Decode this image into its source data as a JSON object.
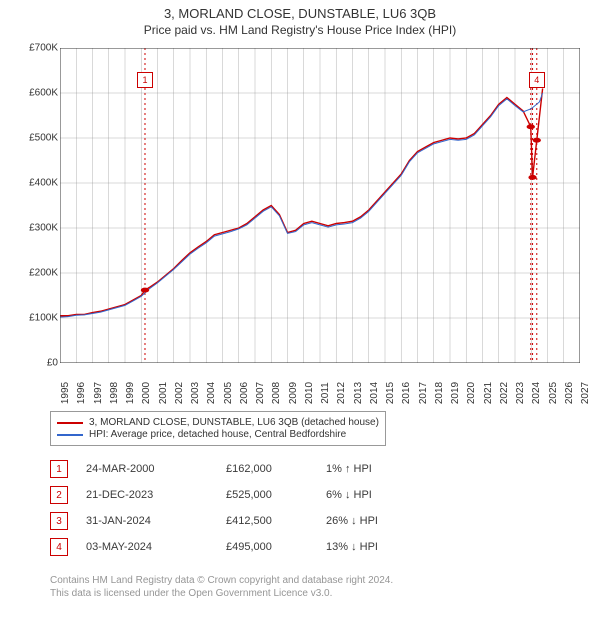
{
  "title": {
    "main": "3, MORLAND CLOSE, DUNSTABLE, LU6 3QB",
    "sub": "Price paid vs. HM Land Registry's House Price Index (HPI)"
  },
  "chart": {
    "type": "line",
    "background_color": "#ffffff",
    "grid_color": "#808080",
    "grid_width": 0.3,
    "axis_color": "#333333",
    "xlim": [
      1995,
      2027
    ],
    "ylim": [
      0,
      700000
    ],
    "ytick_step": 100000,
    "ytick_labels": [
      "£0",
      "£100K",
      "£200K",
      "£300K",
      "£400K",
      "£500K",
      "£600K",
      "£700K"
    ],
    "xtick_step": 1,
    "xticks": [
      1995,
      1996,
      1997,
      1998,
      1999,
      2000,
      2001,
      2002,
      2003,
      2004,
      2005,
      2006,
      2007,
      2008,
      2009,
      2010,
      2011,
      2012,
      2013,
      2014,
      2015,
      2016,
      2017,
      2018,
      2019,
      2020,
      2021,
      2022,
      2023,
      2024,
      2025,
      2026,
      2027
    ],
    "label_fontsize": 10,
    "series": [
      {
        "name": "property",
        "label": "3, MORLAND CLOSE, DUNSTABLE, LU6 3QB (detached house)",
        "color": "#cc0000",
        "width": 1.4,
        "data": [
          [
            1995.0,
            105000
          ],
          [
            1995.5,
            105000
          ],
          [
            1996.0,
            108000
          ],
          [
            1996.5,
            108000
          ],
          [
            1997.0,
            112000
          ],
          [
            1997.5,
            115000
          ],
          [
            1998.0,
            120000
          ],
          [
            1998.5,
            125000
          ],
          [
            1999.0,
            130000
          ],
          [
            1999.5,
            140000
          ],
          [
            2000.0,
            150000
          ],
          [
            2000.23,
            162000
          ],
          [
            2000.5,
            168000
          ],
          [
            2001.0,
            180000
          ],
          [
            2001.5,
            195000
          ],
          [
            2002.0,
            210000
          ],
          [
            2002.5,
            228000
          ],
          [
            2003.0,
            245000
          ],
          [
            2003.5,
            258000
          ],
          [
            2004.0,
            270000
          ],
          [
            2004.5,
            285000
          ],
          [
            2005.0,
            290000
          ],
          [
            2005.5,
            295000
          ],
          [
            2006.0,
            300000
          ],
          [
            2006.5,
            310000
          ],
          [
            2007.0,
            325000
          ],
          [
            2007.5,
            340000
          ],
          [
            2008.0,
            350000
          ],
          [
            2008.5,
            330000
          ],
          [
            2009.0,
            290000
          ],
          [
            2009.5,
            295000
          ],
          [
            2010.0,
            310000
          ],
          [
            2010.5,
            315000
          ],
          [
            2011.0,
            310000
          ],
          [
            2011.5,
            305000
          ],
          [
            2012.0,
            310000
          ],
          [
            2012.5,
            312000
          ],
          [
            2013.0,
            315000
          ],
          [
            2013.5,
            325000
          ],
          [
            2014.0,
            340000
          ],
          [
            2014.5,
            360000
          ],
          [
            2015.0,
            380000
          ],
          [
            2015.5,
            400000
          ],
          [
            2016.0,
            420000
          ],
          [
            2016.5,
            450000
          ],
          [
            2017.0,
            470000
          ],
          [
            2017.5,
            480000
          ],
          [
            2018.0,
            490000
          ],
          [
            2018.5,
            495000
          ],
          [
            2019.0,
            500000
          ],
          [
            2019.5,
            498000
          ],
          [
            2020.0,
            500000
          ],
          [
            2020.5,
            510000
          ],
          [
            2021.0,
            530000
          ],
          [
            2021.5,
            550000
          ],
          [
            2022.0,
            575000
          ],
          [
            2022.5,
            590000
          ],
          [
            2023.0,
            575000
          ],
          [
            2023.5,
            560000
          ],
          [
            2023.97,
            525000
          ],
          [
            2024.08,
            412500
          ],
          [
            2024.34,
            495000
          ],
          [
            2024.7,
            610000
          ]
        ]
      },
      {
        "name": "hpi",
        "label": "HPI: Average price, detached house, Central Bedfordshire",
        "color": "#3366cc",
        "width": 1.0,
        "data": [
          [
            1995.0,
            102000
          ],
          [
            1995.5,
            103000
          ],
          [
            1996.0,
            106000
          ],
          [
            1996.5,
            107000
          ],
          [
            1997.0,
            110000
          ],
          [
            1997.5,
            113000
          ],
          [
            1998.0,
            118000
          ],
          [
            1998.5,
            123000
          ],
          [
            1999.0,
            128000
          ],
          [
            1999.5,
            138000
          ],
          [
            2000.0,
            148000
          ],
          [
            2000.5,
            165000
          ],
          [
            2001.0,
            178000
          ],
          [
            2001.5,
            193000
          ],
          [
            2002.0,
            208000
          ],
          [
            2002.5,
            225000
          ],
          [
            2003.0,
            242000
          ],
          [
            2003.5,
            255000
          ],
          [
            2004.0,
            267000
          ],
          [
            2004.5,
            282000
          ],
          [
            2005.0,
            287000
          ],
          [
            2005.5,
            292000
          ],
          [
            2006.0,
            298000
          ],
          [
            2006.5,
            307000
          ],
          [
            2007.0,
            322000
          ],
          [
            2007.5,
            337000
          ],
          [
            2008.0,
            347000
          ],
          [
            2008.5,
            327000
          ],
          [
            2009.0,
            288000
          ],
          [
            2009.5,
            292000
          ],
          [
            2010.0,
            307000
          ],
          [
            2010.5,
            312000
          ],
          [
            2011.0,
            307000
          ],
          [
            2011.5,
            302000
          ],
          [
            2012.0,
            307000
          ],
          [
            2012.5,
            309000
          ],
          [
            2013.0,
            312000
          ],
          [
            2013.5,
            322000
          ],
          [
            2014.0,
            337000
          ],
          [
            2014.5,
            357000
          ],
          [
            2015.0,
            377000
          ],
          [
            2015.5,
            397000
          ],
          [
            2016.0,
            417000
          ],
          [
            2016.5,
            447000
          ],
          [
            2017.0,
            467000
          ],
          [
            2017.5,
            477000
          ],
          [
            2018.0,
            487000
          ],
          [
            2018.5,
            492000
          ],
          [
            2019.0,
            497000
          ],
          [
            2019.5,
            495000
          ],
          [
            2020.0,
            497000
          ],
          [
            2020.5,
            507000
          ],
          [
            2021.0,
            527000
          ],
          [
            2021.5,
            547000
          ],
          [
            2022.0,
            572000
          ],
          [
            2022.5,
            587000
          ],
          [
            2023.0,
            572000
          ],
          [
            2023.5,
            558000
          ],
          [
            2024.0,
            565000
          ],
          [
            2024.5,
            580000
          ],
          [
            2024.7,
            600000
          ]
        ]
      }
    ],
    "markers": [
      {
        "n": "1",
        "year": 2000.23,
        "value": 162000,
        "box_y": 630000
      },
      {
        "n": "4",
        "year": 2024.34,
        "value": 495000,
        "box_y": 630000
      }
    ],
    "transaction_dots": [
      {
        "year": 2000.23,
        "value": 162000
      },
      {
        "year": 2023.97,
        "value": 525000
      },
      {
        "year": 2024.08,
        "value": 412500
      },
      {
        "year": 2024.34,
        "value": 495000
      }
    ],
    "vlines": [
      {
        "year": 2000.23,
        "color": "#cc0000",
        "dash": "2,3"
      },
      {
        "year": 2023.97,
        "color": "#cc0000",
        "dash": "2,3"
      },
      {
        "year": 2024.08,
        "color": "#cc0000",
        "dash": "2,3"
      },
      {
        "year": 2024.34,
        "color": "#cc0000",
        "dash": "2,3"
      }
    ]
  },
  "legend": {
    "border_color": "#999999",
    "items": [
      {
        "color": "#cc0000",
        "label": "3, MORLAND CLOSE, DUNSTABLE, LU6 3QB (detached house)"
      },
      {
        "color": "#3366cc",
        "label": "HPI: Average price, detached house, Central Bedfordshire"
      }
    ]
  },
  "transactions": [
    {
      "n": "1",
      "date": "24-MAR-2000",
      "price": "£162,000",
      "pct": "1%",
      "dir": "↑",
      "suffix": "HPI"
    },
    {
      "n": "2",
      "date": "21-DEC-2023",
      "price": "£525,000",
      "pct": "6%",
      "dir": "↓",
      "suffix": "HPI"
    },
    {
      "n": "3",
      "date": "31-JAN-2024",
      "price": "£412,500",
      "pct": "26%",
      "dir": "↓",
      "suffix": "HPI"
    },
    {
      "n": "4",
      "date": "03-MAY-2024",
      "price": "£495,000",
      "pct": "13%",
      "dir": "↓",
      "suffix": "HPI"
    }
  ],
  "footer": {
    "line1": "Contains HM Land Registry data © Crown copyright and database right 2024.",
    "line2": "This data is licensed under the Open Government Licence v3.0."
  },
  "colors": {
    "marker_box_border": "#cc0000",
    "marker_box_text": "#cc0000",
    "dot_fill": "#cc0000",
    "footer_text": "#969696"
  }
}
